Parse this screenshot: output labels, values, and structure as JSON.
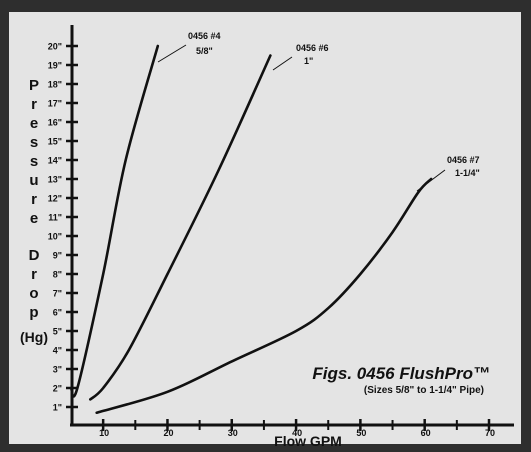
{
  "colors": {
    "background": "#e4e4e4",
    "frame": "#2e2e2e",
    "ink": "#111111"
  },
  "chart_data": {
    "type": "line",
    "title": "Figs. 0456 FlushPro™",
    "subtitle": "(Sizes 5/8\" to 1-1/4\" Pipe)",
    "xlabel": "Flow GPM",
    "ylabel_letters": [
      "P",
      "r",
      "e",
      "s",
      "s",
      "u",
      "r",
      "e",
      "",
      "D",
      "r",
      "o",
      "p"
    ],
    "ylabel_unit": "(Hg)",
    "xlim": [
      5,
      75
    ],
    "ylim": [
      0,
      21
    ],
    "grid": false,
    "x_ticks": [
      10,
      20,
      30,
      40,
      50,
      60,
      70
    ],
    "x_minor_ticks": [
      15,
      25,
      35,
      45,
      55,
      65
    ],
    "y_ticks": [
      {
        "value": 1,
        "label": "1\""
      },
      {
        "value": 2,
        "label": "2\""
      },
      {
        "value": 3,
        "label": "3\""
      },
      {
        "value": 4,
        "label": "4\""
      },
      {
        "value": 5,
        "label": "5\""
      },
      {
        "value": 6,
        "label": "6\""
      },
      {
        "value": 7,
        "label": "7\""
      },
      {
        "value": 8,
        "label": "8\""
      },
      {
        "value": 9,
        "label": "9\""
      },
      {
        "value": 10,
        "label": "10\""
      },
      {
        "value": 11,
        "label": "11\""
      },
      {
        "value": 12,
        "label": "12\""
      },
      {
        "value": 13,
        "label": "13\""
      },
      {
        "value": 14,
        "label": "14\""
      },
      {
        "value": 15,
        "label": "15\""
      },
      {
        "value": 16,
        "label": "16\""
      },
      {
        "value": 17,
        "label": "17\""
      },
      {
        "value": 18,
        "label": "18\""
      },
      {
        "value": 19,
        "label": "19\""
      },
      {
        "value": 20,
        "label": "20\""
      }
    ],
    "series": [
      {
        "name": "0456 #4",
        "size": "5/8\"",
        "points": [
          [
            5,
            2.0
          ],
          [
            6,
            2.0
          ],
          [
            10,
            8.0
          ],
          [
            13.5,
            14.0
          ],
          [
            18.5,
            20.0
          ]
        ]
      },
      {
        "name": "0456 #6",
        "size": "1\"",
        "points": [
          [
            8,
            1.4
          ],
          [
            10,
            2.0
          ],
          [
            14,
            4.0
          ],
          [
            20,
            8.0
          ],
          [
            28,
            13.5
          ],
          [
            36,
            19.5
          ]
        ]
      },
      {
        "name": "0456 #7",
        "size": "1-1/4\"",
        "points": [
          [
            9,
            0.7
          ],
          [
            20,
            1.8
          ],
          [
            30,
            3.4
          ],
          [
            40,
            5.0
          ],
          [
            45,
            6.2
          ],
          [
            50,
            8.0
          ],
          [
            55,
            10.2
          ],
          [
            59,
            12.3
          ],
          [
            61,
            13.0
          ]
        ]
      }
    ]
  }
}
